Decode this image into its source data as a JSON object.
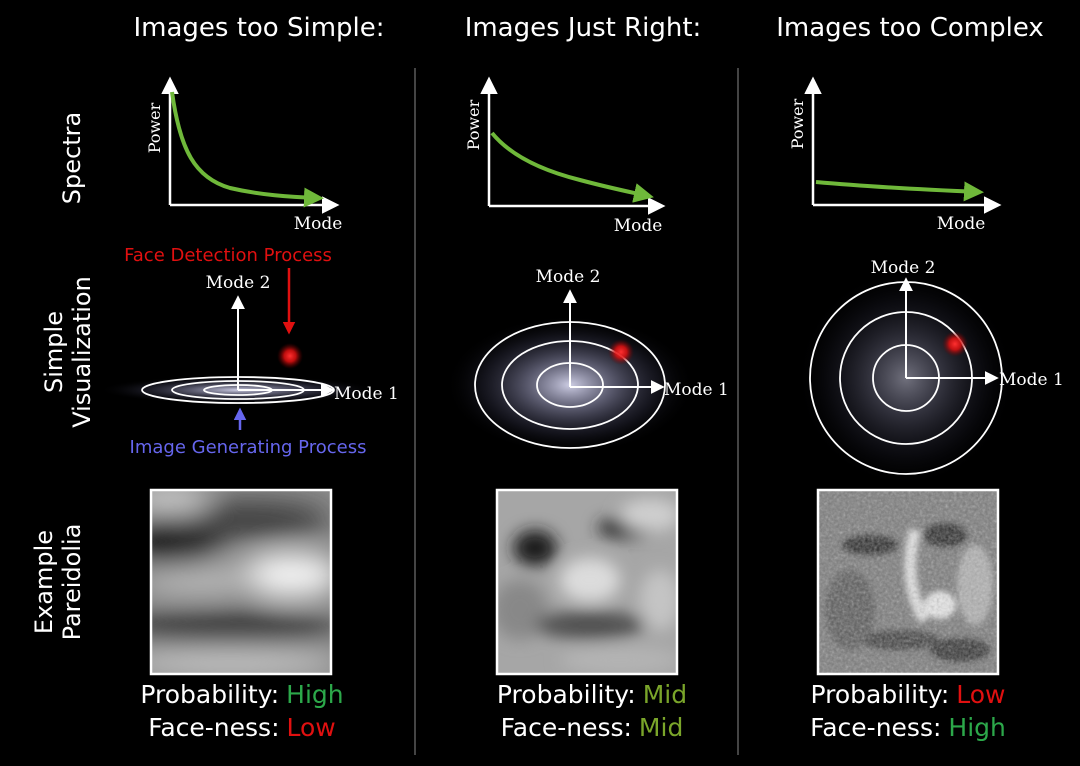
{
  "columns": [
    {
      "title": "Images too Simple:",
      "probability_label": "Probability:",
      "probability_value": "High",
      "probability_color": "#2ca84a",
      "faceness_label": "Face-ness:",
      "faceness_value": "Low",
      "faceness_color": "#e01010"
    },
    {
      "title": "Images Just Right:",
      "probability_label": "Probability:",
      "probability_value": "Mid",
      "probability_color": "#7aa52a",
      "faceness_label": "Face-ness:",
      "faceness_value": "Mid",
      "faceness_color": "#7aa52a"
    },
    {
      "title": "Images too Complex",
      "probability_label": "Probability:",
      "probability_value": "Low",
      "probability_color": "#e01010",
      "faceness_label": "Face-ness:",
      "faceness_value": "High",
      "faceness_color": "#2ca84a"
    }
  ],
  "row_labels": {
    "spectra": "Spectra",
    "visualization_line1": "Simple",
    "visualization_line2": "Visualization",
    "pareidolia_line1": "Example",
    "pareidolia_line2": "Pareidolia"
  },
  "axes": {
    "power": "Power",
    "mode": "Mode",
    "mode1": "Mode 1",
    "mode2": "Mode 2"
  },
  "annotations": {
    "face_detection": "Face Detection Process",
    "face_detection_color": "#e01010",
    "image_generating": "Image Generating Process",
    "image_generating_color": "#6666ee"
  },
  "colors": {
    "spectrum_curve": "#6fb83a",
    "axes": "#ffffff",
    "detector_dot": "#ff1a1a"
  }
}
